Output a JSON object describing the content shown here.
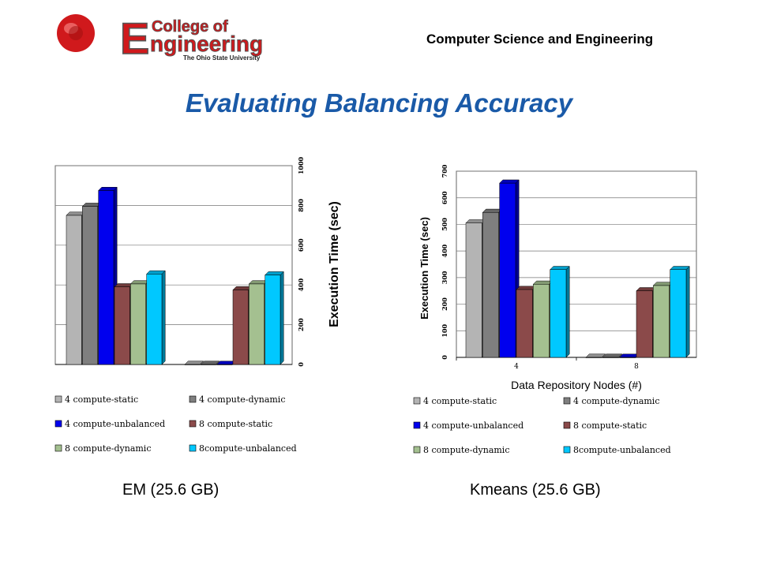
{
  "header": {
    "logo_text_college": "College of",
    "logo_text_engineering": "Engineering",
    "logo_text_university": "The Ohio State University",
    "department": "Computer Science and Engineering"
  },
  "slide_title": "Evaluating Balancing Accuracy",
  "captions": [
    "EM (25.6 GB)",
    "Kmeans (25.6 GB)"
  ],
  "colors": {
    "title": "#1a5aa8",
    "logo_red": "#d0191c"
  },
  "chart_data": [
    {
      "type": "bar",
      "title": "",
      "xlabel": "",
      "ylabel": "Execution Time (sec)",
      "ylim": [
        0,
        1000
      ],
      "yticks": [
        0,
        200,
        400,
        600,
        800,
        1000
      ],
      "categories": [
        "",
        ""
      ],
      "legend_position": "bottom",
      "series": [
        {
          "name": "4 compute-static",
          "values": [
            750,
            0
          ],
          "color": "#b4b4b4"
        },
        {
          "name": "4 compute-dynamic",
          "values": [
            795,
            0
          ],
          "color": "#7f7f7f"
        },
        {
          "name": "4 compute-unbalanced",
          "values": [
            875,
            0
          ],
          "color": "#0000ee"
        },
        {
          "name": "8 compute-static",
          "values": [
            390,
            375
          ],
          "color": "#8b4a4a"
        },
        {
          "name": "8 compute-dynamic",
          "values": [
            405,
            405
          ],
          "color": "#a4c090"
        },
        {
          "name": "8compute-unbalanced",
          "values": [
            455,
            450
          ],
          "color": "#00c8ff"
        }
      ]
    },
    {
      "type": "bar",
      "title": "",
      "xlabel": "Data Repository Nodes (#)",
      "ylabel": "Execution Time (sec)",
      "ylim": [
        0,
        700
      ],
      "yticks": [
        0,
        100,
        200,
        300,
        400,
        500,
        600,
        700
      ],
      "categories": [
        "4",
        "8"
      ],
      "legend_position": "bottom",
      "series": [
        {
          "name": "4 compute-static",
          "values": [
            505,
            0
          ],
          "color": "#b4b4b4"
        },
        {
          "name": "4 compute-dynamic",
          "values": [
            545,
            0
          ],
          "color": "#7f7f7f"
        },
        {
          "name": "4 compute-unbalanced",
          "values": [
            655,
            0
          ],
          "color": "#0000ee"
        },
        {
          "name": "8 compute-static",
          "values": [
            255,
            250
          ],
          "color": "#8b4a4a"
        },
        {
          "name": "8 compute-dynamic",
          "values": [
            275,
            270
          ],
          "color": "#a4c090"
        },
        {
          "name": "8compute-unbalanced",
          "values": [
            330,
            330
          ],
          "color": "#00c8ff"
        }
      ]
    }
  ]
}
